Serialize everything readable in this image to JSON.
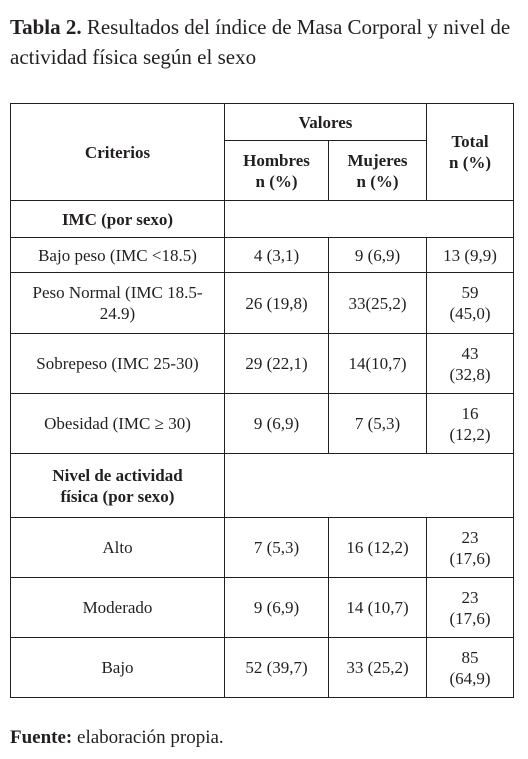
{
  "caption": {
    "label": "Tabla 2.",
    "text": "Resultados del índice de Masa Corporal y nivel de actividad física según el sexo"
  },
  "table": {
    "header": {
      "criterios": "Criterios",
      "valores": "Valores",
      "hombres": "Hombres n (%)",
      "mujeres": "Mujeres n (%)",
      "total": "Total n (%)"
    },
    "sections": [
      {
        "title": "IMC (por sexo)",
        "rows": [
          [
            "Bajo peso (IMC <18.5)",
            "4 (3,1)",
            "9 (6,9)",
            "13 (9,9)"
          ],
          [
            "Peso Normal (IMC 18.5-24.9)",
            "26 (19,8)",
            "33(25,2)",
            "59 (45,0)"
          ],
          [
            "Sobrepeso (IMC 25-30)",
            "29 (22,1)",
            "14(10,7)",
            "43 (32,8)"
          ],
          [
            "Obesidad (IMC ≥ 30)",
            "9 (6,9)",
            "7 (5,3)",
            "16 (12,2)"
          ]
        ]
      },
      {
        "title": "Nivel de actividad física (por sexo)",
        "rows": [
          [
            "Alto",
            "7 (5,3)",
            "16 (12,2)",
            "23 (17,6)"
          ],
          [
            "Moderado",
            "9 (6,9)",
            "14 (10,7)",
            "23 (17,6)"
          ],
          [
            "Bajo",
            "52 (39,7)",
            "33 (25,2)",
            "85 (64,9)"
          ]
        ]
      }
    ]
  },
  "footer": {
    "label": "Fuente:",
    "text": "elaboración propia."
  }
}
